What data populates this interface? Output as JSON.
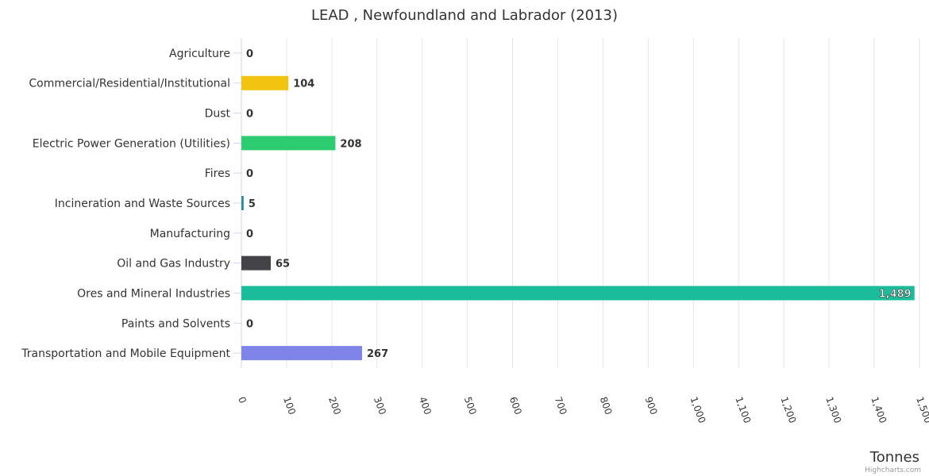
{
  "chart_data": {
    "type": "bar",
    "orientation": "horizontal",
    "title": "LEAD , Newfoundland and Labrador (2013)",
    "xlabel": "Tonnes",
    "ylabel": "",
    "xlim": [
      0,
      1500
    ],
    "grid": true,
    "credits": "Highcharts.com",
    "ticks": [
      "0",
      "100",
      "200",
      "300",
      "400",
      "500",
      "600",
      "700",
      "800",
      "900",
      "1,000",
      "1,100",
      "1,200",
      "1,300",
      "1,400",
      "1,500"
    ],
    "categories": [
      "Agriculture",
      "Commercial/Residential/Institutional",
      "Dust",
      "Electric Power Generation (Utilities)",
      "Fires",
      "Incineration and Waste Sources",
      "Manufacturing",
      "Oil and Gas Industry",
      "Ores and Mineral Industries",
      "Paints and Solvents",
      "Transportation and Mobile Equipment"
    ],
    "values": [
      0,
      104,
      0,
      208,
      0,
      5,
      0,
      65,
      1489,
      0,
      267
    ],
    "value_labels": [
      "0",
      "104",
      "0",
      "208",
      "0",
      "5",
      "0",
      "65",
      "1,489",
      "0",
      "267"
    ],
    "colors": [
      "#7cb5ec",
      "#f1c40f",
      "#e67e22",
      "#2ecc71",
      "#e74c3c",
      "#2a8c9c",
      "#95a5a6",
      "#434348",
      "#1abc9c",
      "#9b59b6",
      "#7f84e8"
    ]
  }
}
